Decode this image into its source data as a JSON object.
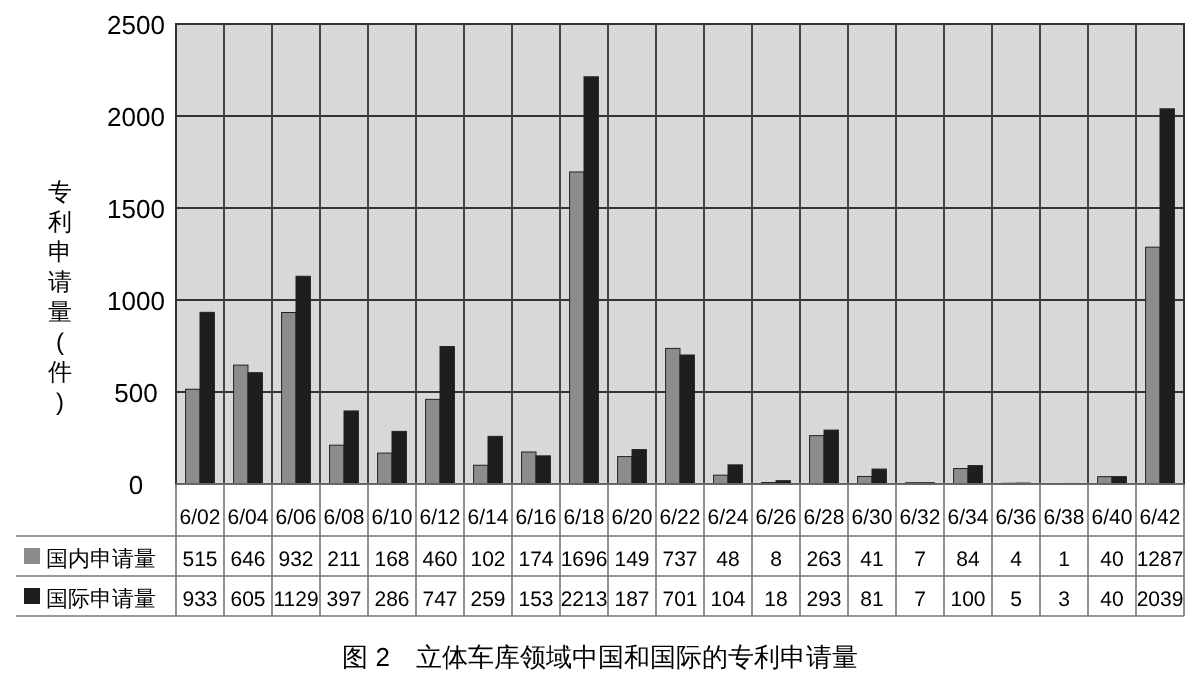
{
  "chart_data": {
    "type": "bar",
    "title": "图 2　立体车库领域中国和国际的专利申请量",
    "ylabel": "专利申请量(件)",
    "categories": [
      "6/02",
      "6/04",
      "6/06",
      "6/08",
      "6/10",
      "6/12",
      "6/14",
      "6/16",
      "6/18",
      "6/20",
      "6/22",
      "6/24",
      "6/26",
      "6/28",
      "6/30",
      "6/32",
      "6/34",
      "6/36",
      "6/38",
      "6/40",
      "6/42"
    ],
    "series": [
      {
        "name": "国内申请量",
        "color": "#8c8c8c",
        "values": [
          515,
          646,
          932,
          211,
          168,
          460,
          102,
          174,
          1696,
          149,
          737,
          48,
          8,
          263,
          41,
          7,
          84,
          4,
          1,
          40,
          1287
        ]
      },
      {
        "name": "国际申请量",
        "color": "#1e1e1e",
        "values": [
          933,
          605,
          1129,
          397,
          286,
          747,
          259,
          153,
          2213,
          187,
          701,
          104,
          18,
          293,
          81,
          7,
          100,
          5,
          3,
          40,
          2039
        ]
      }
    ],
    "ylim": [
      0,
      2500
    ],
    "yticks": [
      0,
      500,
      1000,
      1500,
      2000,
      2500
    ],
    "grid": true,
    "legend": "bottom",
    "data_labels": true
  }
}
